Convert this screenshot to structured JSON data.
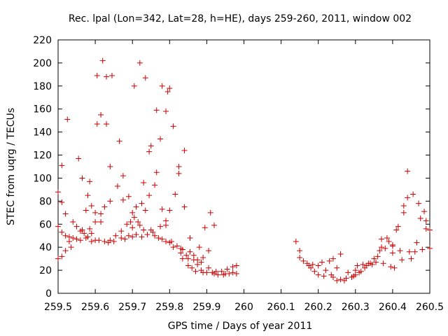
{
  "chart_data": {
    "type": "scatter",
    "title": "Rec. lpal (Lon=342, Lat=28, h=HE), days 259-260, 2011, window 002",
    "xlabel": "GPS time / Days of year 2011",
    "ylabel": "STEC from uqrg / TECUs",
    "xlim": [
      259.5,
      260.5
    ],
    "ylim": [
      0,
      220
    ],
    "x_ticks": [
      "259.5",
      "259.6",
      "259.7",
      "259.8",
      "259.9",
      "260",
      "260.1",
      "260.2",
      "260.3",
      "260.4",
      "260.5"
    ],
    "y_ticks": [
      "0",
      "20",
      "40",
      "60",
      "80",
      "100",
      "120",
      "140",
      "160",
      "180",
      "200",
      "220"
    ],
    "grid": false,
    "marker": "+",
    "color": "#cc0000",
    "points": [
      [
        259.5,
        30
      ],
      [
        259.5,
        58
      ],
      [
        259.5,
        88
      ],
      [
        259.51,
        32
      ],
      [
        259.51,
        53
      ],
      [
        259.51,
        79
      ],
      [
        259.51,
        111
      ],
      [
        259.52,
        37
      ],
      [
        259.52,
        50
      ],
      [
        259.52,
        69
      ],
      [
        259.525,
        151
      ],
      [
        259.53,
        49
      ],
      [
        259.53,
        45
      ],
      [
        259.535,
        40
      ],
      [
        259.54,
        48
      ],
      [
        259.54,
        62
      ],
      [
        259.55,
        47
      ],
      [
        259.55,
        58
      ],
      [
        259.555,
        117
      ],
      [
        259.56,
        46
      ],
      [
        259.56,
        54
      ],
      [
        259.565,
        55
      ],
      [
        259.565,
        100
      ],
      [
        259.57,
        52
      ],
      [
        259.575,
        48
      ],
      [
        259.575,
        72
      ],
      [
        259.58,
        49
      ],
      [
        259.58,
        85
      ],
      [
        259.585,
        56
      ],
      [
        259.585,
        97
      ],
      [
        259.59,
        45
      ],
      [
        259.59,
        52
      ],
      [
        259.59,
        76
      ],
      [
        259.6,
        46
      ],
      [
        259.6,
        62
      ],
      [
        259.6,
        70
      ],
      [
        259.605,
        147
      ],
      [
        259.605,
        189
      ],
      [
        259.61,
        46
      ],
      [
        259.615,
        62
      ],
      [
        259.615,
        69
      ],
      [
        259.615,
        155
      ],
      [
        259.62,
        202
      ],
      [
        259.625,
        45
      ],
      [
        259.625,
        75
      ],
      [
        259.63,
        147
      ],
      [
        259.63,
        188
      ],
      [
        259.635,
        44
      ],
      [
        259.64,
        46
      ],
      [
        259.64,
        80
      ],
      [
        259.64,
        110
      ],
      [
        259.645,
        189
      ],
      [
        259.65,
        45
      ],
      [
        259.655,
        50
      ],
      [
        259.66,
        93
      ],
      [
        259.665,
        132
      ],
      [
        259.67,
        48
      ],
      [
        259.67,
        54
      ],
      [
        259.675,
        81
      ],
      [
        259.675,
        102
      ],
      [
        259.68,
        47
      ],
      [
        259.685,
        60
      ],
      [
        259.69,
        50
      ],
      [
        259.69,
        84
      ],
      [
        259.695,
        62
      ],
      [
        259.7,
        49
      ],
      [
        259.7,
        57
      ],
      [
        259.7,
        70
      ],
      [
        259.705,
        66
      ],
      [
        259.705,
        180
      ],
      [
        259.71,
        51
      ],
      [
        259.71,
        75
      ],
      [
        259.715,
        62
      ],
      [
        259.72,
        59
      ],
      [
        259.72,
        200
      ],
      [
        259.725,
        49
      ],
      [
        259.725,
        78
      ],
      [
        259.73,
        55
      ],
      [
        259.73,
        96
      ],
      [
        259.735,
        72
      ],
      [
        259.735,
        187
      ],
      [
        259.74,
        51
      ],
      [
        259.745,
        85
      ],
      [
        259.745,
        123
      ],
      [
        259.75,
        55
      ],
      [
        259.75,
        128
      ],
      [
        259.755,
        53
      ],
      [
        259.76,
        50
      ],
      [
        259.76,
        94
      ],
      [
        259.765,
        105
      ],
      [
        259.765,
        159
      ],
      [
        259.77,
        48
      ],
      [
        259.775,
        58
      ],
      [
        259.775,
        134
      ],
      [
        259.78,
        47
      ],
      [
        259.78,
        73
      ],
      [
        259.78,
        180
      ],
      [
        259.79,
        45
      ],
      [
        259.79,
        59
      ],
      [
        259.79,
        63
      ],
      [
        259.79,
        158
      ],
      [
        259.795,
        175
      ],
      [
        259.8,
        44
      ],
      [
        259.8,
        72
      ],
      [
        259.8,
        178
      ],
      [
        259.805,
        45
      ],
      [
        259.81,
        40
      ],
      [
        259.81,
        145
      ],
      [
        259.815,
        86
      ],
      [
        259.82,
        41
      ],
      [
        259.825,
        104
      ],
      [
        259.825,
        110
      ],
      [
        259.83,
        35
      ],
      [
        259.83,
        39
      ],
      [
        259.835,
        30
      ],
      [
        259.835,
        38
      ],
      [
        259.84,
        75
      ],
      [
        259.84,
        124
      ],
      [
        259.845,
        33
      ],
      [
        259.85,
        24
      ],
      [
        259.85,
        30
      ],
      [
        259.855,
        36
      ],
      [
        259.855,
        48
      ],
      [
        259.86,
        22
      ],
      [
        259.865,
        29
      ],
      [
        259.865,
        33
      ],
      [
        259.87,
        19
      ],
      [
        259.875,
        25
      ],
      [
        259.875,
        29
      ],
      [
        259.88,
        40
      ],
      [
        259.885,
        20
      ],
      [
        259.885,
        27
      ],
      [
        259.89,
        18
      ],
      [
        259.89,
        31
      ],
      [
        259.895,
        57
      ],
      [
        259.9,
        18
      ],
      [
        259.905,
        22
      ],
      [
        259.905,
        37
      ],
      [
        259.91,
        70
      ],
      [
        259.915,
        18
      ],
      [
        259.92,
        17
      ],
      [
        259.92,
        59
      ],
      [
        259.925,
        19
      ],
      [
        259.93,
        16
      ],
      [
        259.94,
        19
      ],
      [
        259.945,
        16
      ],
      [
        259.95,
        17
      ],
      [
        259.955,
        21
      ],
      [
        259.96,
        17
      ],
      [
        259.97,
        18
      ],
      [
        259.97,
        23
      ],
      [
        259.98,
        17
      ],
      [
        259.98,
        24
      ],
      [
        260.14,
        45
      ],
      [
        260.15,
        37
      ],
      [
        260.15,
        31
      ],
      [
        260.16,
        28
      ],
      [
        260.17,
        26
      ],
      [
        260.175,
        24
      ],
      [
        260.18,
        22
      ],
      [
        260.185,
        25
      ],
      [
        260.19,
        19
      ],
      [
        260.2,
        16
      ],
      [
        260.2,
        24
      ],
      [
        260.21,
        27
      ],
      [
        260.215,
        15
      ],
      [
        260.22,
        20
      ],
      [
        260.23,
        28
      ],
      [
        260.235,
        16
      ],
      [
        260.24,
        14
      ],
      [
        260.24,
        30
      ],
      [
        260.25,
        11
      ],
      [
        260.25,
        22
      ],
      [
        260.26,
        12
      ],
      [
        260.26,
        34
      ],
      [
        260.27,
        11
      ],
      [
        260.275,
        13
      ],
      [
        260.28,
        18
      ],
      [
        260.29,
        14
      ],
      [
        260.295,
        15
      ],
      [
        260.3,
        16
      ],
      [
        260.3,
        20
      ],
      [
        260.305,
        24
      ],
      [
        260.31,
        18
      ],
      [
        260.315,
        19
      ],
      [
        260.32,
        25
      ],
      [
        260.325,
        22
      ],
      [
        260.33,
        24
      ],
      [
        260.335,
        26
      ],
      [
        260.34,
        26
      ],
      [
        260.345,
        25
      ],
      [
        260.35,
        30
      ],
      [
        260.355,
        27
      ],
      [
        260.36,
        32
      ],
      [
        260.365,
        37
      ],
      [
        260.37,
        40
      ],
      [
        260.37,
        47
      ],
      [
        260.375,
        26
      ],
      [
        260.38,
        39
      ],
      [
        260.385,
        48
      ],
      [
        260.39,
        45
      ],
      [
        260.395,
        23
      ],
      [
        260.4,
        35
      ],
      [
        260.4,
        41
      ],
      [
        260.4,
        42
      ],
      [
        260.405,
        22
      ],
      [
        260.41,
        55
      ],
      [
        260.415,
        58
      ],
      [
        260.42,
        37
      ],
      [
        260.425,
        29
      ],
      [
        260.43,
        76
      ],
      [
        260.43,
        70
      ],
      [
        260.44,
        106
      ],
      [
        260.44,
        83
      ],
      [
        260.445,
        36
      ],
      [
        260.45,
        30
      ],
      [
        260.455,
        86
      ],
      [
        260.46,
        36
      ],
      [
        260.465,
        44
      ],
      [
        260.47,
        78
      ],
      [
        260.475,
        65
      ],
      [
        260.48,
        38
      ],
      [
        260.485,
        71
      ],
      [
        260.49,
        56
      ],
      [
        260.49,
        63
      ],
      [
        260.5,
        55
      ],
      [
        260.5,
        39
      ]
    ]
  }
}
